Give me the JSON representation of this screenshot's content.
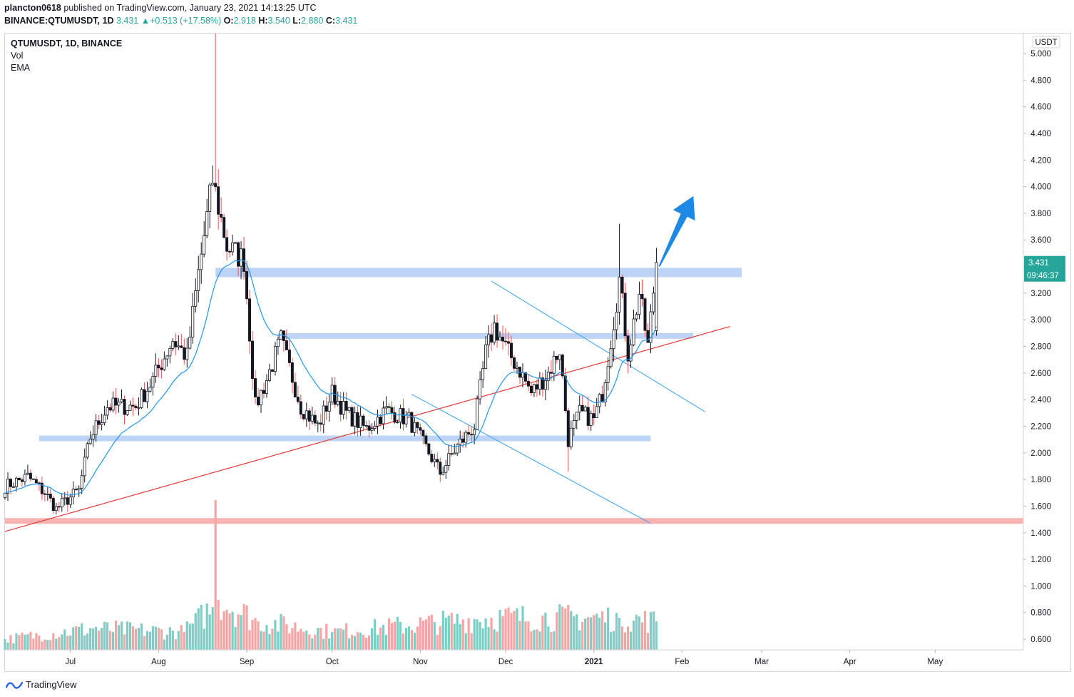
{
  "header": {
    "publisher": "plancton0618",
    "published_text": "published on TradingView.com, January 23, 2021 14:13:25 UTC",
    "symbol": "BINANCE:QTUMUSDT, 1D",
    "last": "3.431",
    "change": "+0.513 (+17.58%)",
    "open_label": "O:",
    "open": "2.918",
    "high_label": "H:",
    "high": "3.540",
    "low_label": "L:",
    "low": "2.880",
    "close_label": "C:",
    "close": "3.431"
  },
  "legend": {
    "title": "QTUMUSDT, 1D, BINANCE",
    "vol": "Vol",
    "ema": "EMA"
  },
  "price_axis": {
    "currency": "USDT",
    "last_price": "3.431",
    "countdown": "09:46:37"
  },
  "footer": {
    "brand": "TradingView"
  },
  "colors": {
    "up": "#26a69a",
    "down": "#ef5350",
    "candle": "#131722",
    "ema": "#2196f3",
    "trend": "#e53935",
    "zone_blue": "#b3cdf5",
    "zone_red": "#f8a5a5",
    "arrow": "#1e88e5",
    "price_label": "#26a69a"
  },
  "chart_data": {
    "type": "candlestick",
    "y_axis": {
      "min": 0.5,
      "max": 5.0,
      "ticks": [
        "5.000",
        "4.800",
        "4.600",
        "4.400",
        "4.200",
        "4.000",
        "3.800",
        "3.600",
        "3.400",
        "3.200",
        "3.000",
        "2.800",
        "2.600",
        "2.400",
        "2.200",
        "2.000",
        "1.800",
        "1.600",
        "1.400",
        "1.200",
        "1.000",
        "0.800",
        "0.600"
      ]
    },
    "x_axis": {
      "start": "2020-06-08",
      "end": "2021-06-01",
      "labels": [
        {
          "date": "2020-07-01",
          "text": "Jul",
          "bold": false
        },
        {
          "date": "2020-08-01",
          "text": "Aug",
          "bold": false
        },
        {
          "date": "2020-09-01",
          "text": "Sep",
          "bold": false
        },
        {
          "date": "2020-10-01",
          "text": "Oct",
          "bold": false
        },
        {
          "date": "2020-11-01",
          "text": "Nov",
          "bold": false
        },
        {
          "date": "2020-12-01",
          "text": "Dec",
          "bold": false
        },
        {
          "date": "2021-01-01",
          "text": "2021",
          "bold": true
        },
        {
          "date": "2021-02-01",
          "text": "Feb",
          "bold": false
        },
        {
          "date": "2021-03-01",
          "text": "Mar",
          "bold": false
        },
        {
          "date": "2021-04-01",
          "text": "Apr",
          "bold": false
        },
        {
          "date": "2021-05-01",
          "text": "May",
          "bold": false
        }
      ]
    },
    "price_keypoints": [
      {
        "date": "2020-06-08",
        "price": 1.75
      },
      {
        "date": "2020-06-16",
        "price": 1.82
      },
      {
        "date": "2020-06-22",
        "price": 1.7
      },
      {
        "date": "2020-06-26",
        "price": 1.58
      },
      {
        "date": "2020-07-04",
        "price": 1.72
      },
      {
        "date": "2020-07-08",
        "price": 2.12
      },
      {
        "date": "2020-07-14",
        "price": 2.35
      },
      {
        "date": "2020-07-24",
        "price": 2.35
      },
      {
        "date": "2020-07-30",
        "price": 2.55
      },
      {
        "date": "2020-08-06",
        "price": 2.85
      },
      {
        "date": "2020-08-11",
        "price": 2.72
      },
      {
        "date": "2020-08-15",
        "price": 3.35
      },
      {
        "date": "2020-08-20",
        "price": 4.05
      },
      {
        "date": "2020-08-25",
        "price": 3.55
      },
      {
        "date": "2020-08-31",
        "price": 3.45
      },
      {
        "date": "2020-09-04",
        "price": 2.35
      },
      {
        "date": "2020-09-08",
        "price": 2.55
      },
      {
        "date": "2020-09-13",
        "price": 2.85
      },
      {
        "date": "2020-09-20",
        "price": 2.35
      },
      {
        "date": "2020-09-26",
        "price": 2.2
      },
      {
        "date": "2020-10-01",
        "price": 2.45
      },
      {
        "date": "2020-10-06",
        "price": 2.3
      },
      {
        "date": "2020-10-13",
        "price": 2.18
      },
      {
        "date": "2020-10-20",
        "price": 2.32
      },
      {
        "date": "2020-10-28",
        "price": 2.25
      },
      {
        "date": "2020-11-04",
        "price": 2.0
      },
      {
        "date": "2020-11-08",
        "price": 1.85
      },
      {
        "date": "2020-11-14",
        "price": 2.05
      },
      {
        "date": "2020-11-20",
        "price": 2.2
      },
      {
        "date": "2020-11-24",
        "price": 2.75
      },
      {
        "date": "2020-11-27",
        "price": 2.95
      },
      {
        "date": "2020-12-02",
        "price": 2.75
      },
      {
        "date": "2020-12-06",
        "price": 2.62
      },
      {
        "date": "2020-12-10",
        "price": 2.45
      },
      {
        "date": "2020-12-16",
        "price": 2.6
      },
      {
        "date": "2020-12-20",
        "price": 2.78
      },
      {
        "date": "2020-12-23",
        "price": 2.1
      },
      {
        "date": "2020-12-27",
        "price": 2.3
      },
      {
        "date": "2021-01-01",
        "price": 2.25
      },
      {
        "date": "2021-01-04",
        "price": 2.45
      },
      {
        "date": "2021-01-07",
        "price": 2.85
      },
      {
        "date": "2021-01-10",
        "price": 3.3
      },
      {
        "date": "2021-01-13",
        "price": 2.75
      },
      {
        "date": "2021-01-17",
        "price": 3.2
      },
      {
        "date": "2021-01-20",
        "price": 2.8
      },
      {
        "date": "2021-01-23",
        "price": 3.43
      }
    ],
    "volume_keypoints": [
      {
        "date": "2020-06-08",
        "v": 0.3
      },
      {
        "date": "2020-07-09",
        "v": 0.6
      },
      {
        "date": "2020-08-10",
        "v": 0.5
      },
      {
        "date": "2020-08-20",
        "v": 1.2
      },
      {
        "date": "2020-08-21",
        "v": 4.2
      },
      {
        "date": "2020-08-22",
        "v": 1.4
      },
      {
        "date": "2020-09-05",
        "v": 0.8
      },
      {
        "date": "2020-10-01",
        "v": 0.5
      },
      {
        "date": "2020-11-26",
        "v": 0.9
      },
      {
        "date": "2021-01-10",
        "v": 0.9
      },
      {
        "date": "2021-01-23",
        "v": 0.8
      }
    ],
    "ema_period": 20,
    "zones": [
      {
        "name": "resistance",
        "from": "2020-08-21",
        "to": "2021-02-22",
        "low": 3.32,
        "high": 3.39,
        "color": "zone_blue"
      },
      {
        "name": "mid",
        "from": "2020-09-12",
        "to": "2021-02-05",
        "low": 2.86,
        "high": 2.9,
        "color": "zone_blue"
      },
      {
        "name": "support",
        "from": "2020-06-20",
        "to": "2021-01-21",
        "low": 2.1,
        "high": 2.13,
        "color": "zone_blue"
      },
      {
        "name": "base",
        "from": "2020-06-08",
        "to": "2021-06-01",
        "low": 1.47,
        "high": 1.51,
        "color": "zone_red"
      }
    ],
    "trendline": {
      "from": {
        "date": "2020-06-08",
        "price": 1.41
      },
      "to": {
        "date": "2021-02-18",
        "price": 2.95
      }
    },
    "channel": [
      {
        "from": {
          "date": "2020-11-26",
          "price": 3.29
        },
        "to": {
          "date": "2021-02-09",
          "price": 2.31
        }
      },
      {
        "from": {
          "date": "2020-10-29",
          "price": 2.44
        },
        "to": {
          "date": "2021-01-21",
          "price": 1.47
        }
      }
    ],
    "arrow": {
      "from": {
        "date": "2021-01-24",
        "price": 3.4
      },
      "to": {
        "date": "2021-02-05",
        "price": 3.93
      }
    }
  }
}
